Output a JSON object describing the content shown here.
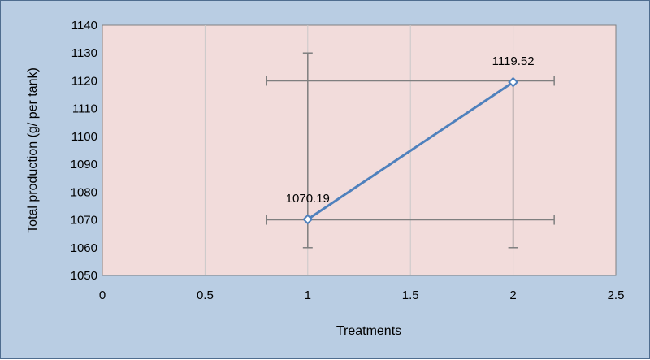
{
  "chart_data": {
    "type": "scatter",
    "title": "",
    "xlabel": "Treatments",
    "ylabel": "Total production (g/ per tank)",
    "xlim": [
      0,
      2.5
    ],
    "ylim": [
      1050,
      1140
    ],
    "xticks": [
      0,
      0.5,
      1,
      1.5,
      2,
      2.5
    ],
    "xtick_labels": [
      "0",
      "0.5",
      "1",
      "1.5",
      "2",
      "2.5"
    ],
    "yticks": [
      1050,
      1060,
      1070,
      1080,
      1090,
      1100,
      1110,
      1120,
      1130,
      1140
    ],
    "ytick_labels": [
      "1050",
      "1060",
      "1070",
      "1080",
      "1090",
      "1100",
      "1110",
      "1120",
      "1130",
      "1140"
    ],
    "grid": {
      "vertical": true,
      "horizontal": false
    },
    "legend": "none",
    "series": [
      {
        "x": [
          1,
          2
        ],
        "y": [
          1070.19,
          1119.52
        ],
        "data_labels": [
          "1070.19",
          "1119.52"
        ],
        "marker": "diamond-open",
        "connected": true,
        "y_error_bar_range": [
          [
            1060,
            1130
          ],
          [
            1060,
            1120
          ]
        ],
        "x_error_bar_range": [
          [
            0.8,
            2.2
          ],
          [
            0.8,
            2.2
          ]
        ],
        "error_bar_y_values": [
          1070,
          1120
        ]
      }
    ],
    "colors": {
      "outer_background": "#b9cde3",
      "plot_background": "#f2dcdb",
      "series_line": "#4f81bd",
      "error_bars": "#7f7f7f",
      "gridlines": "#c9c9c9"
    }
  }
}
